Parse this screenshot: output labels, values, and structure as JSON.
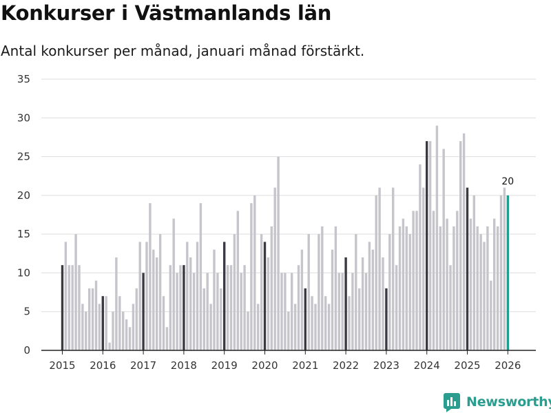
{
  "header": {
    "title": "Konkurser i Västmanlands län",
    "subtitle": "Antal konkurser per månad, januari månad förstärkt."
  },
  "branding": {
    "name": "Newsworthy",
    "icon": "newsworthy-logo-icon"
  },
  "colors": {
    "regular": "#c5c5cb",
    "january": "#3a3a42",
    "latest": "#1e9e8e",
    "grid": "#dddddd",
    "brand": "#2a9d8f"
  },
  "chart_data": {
    "type": "bar",
    "title": "Konkurser i Västmanlands län",
    "subtitle": "Antal konkurser per månad, januari månad förstärkt.",
    "xlabel": "",
    "ylabel": "",
    "ylim": [
      0,
      35
    ],
    "yticks": [
      0,
      5,
      10,
      15,
      20,
      25,
      30,
      35
    ],
    "grid": true,
    "start": "2015-01",
    "x_tick_labels": [
      "2015",
      "2016",
      "2017",
      "2018",
      "2019",
      "2020",
      "2021",
      "2022",
      "2023",
      "2024",
      "2025",
      "2026"
    ],
    "highlight_last_label": "20",
    "values": [
      11,
      14,
      11,
      11,
      15,
      11,
      6,
      5,
      8,
      8,
      9,
      6,
      7,
      7,
      1,
      5,
      12,
      7,
      5,
      4,
      3,
      6,
      8,
      14,
      10,
      14,
      19,
      13,
      12,
      15,
      7,
      3,
      11,
      17,
      10,
      11,
      11,
      14,
      12,
      10,
      14,
      19,
      8,
      10,
      6,
      13,
      10,
      8,
      14,
      11,
      11,
      15,
      18,
      10,
      11,
      5,
      19,
      20,
      6,
      15,
      14,
      12,
      16,
      21,
      25,
      10,
      10,
      5,
      10,
      6,
      11,
      13,
      8,
      15,
      7,
      6,
      15,
      16,
      7,
      6,
      13,
      16,
      10,
      10,
      12,
      7,
      10,
      15,
      8,
      12,
      10,
      14,
      13,
      20,
      21,
      12,
      8,
      15,
      21,
      11,
      16,
      17,
      16,
      15,
      18,
      18,
      24,
      21,
      27,
      27,
      18,
      29,
      16,
      26,
      17,
      11,
      16,
      18,
      27,
      28,
      21,
      17,
      20,
      16,
      15,
      14,
      16,
      9,
      17,
      16,
      20,
      21,
      20
    ]
  }
}
